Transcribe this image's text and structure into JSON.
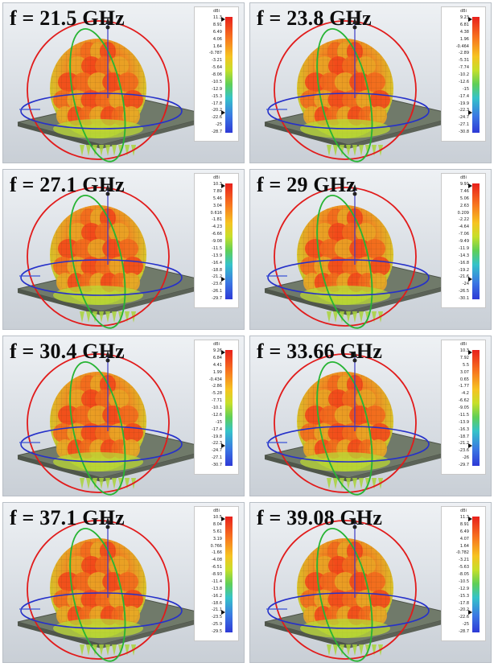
{
  "panels": [
    {
      "freq_label": "f = 21.5 GHz",
      "colorbar_unit": "dBi",
      "ticks": [
        "11.3",
        "8.91",
        "6.49",
        "4.06",
        "1.64",
        "-0.787",
        "-3.21",
        "-5.64",
        "-8.06",
        "-10.5",
        "-12.9",
        "-15.3",
        "-17.8",
        "-20.2",
        "-22.6",
        "-25",
        "-28.7"
      ]
    },
    {
      "freq_label": "f = 23.8 GHz",
      "colorbar_unit": "dBi",
      "ticks": [
        "9.23",
        "6.81",
        "4.38",
        "1.96",
        "-0.464",
        "-2.89",
        "-5.31",
        "-7.74",
        "-10.2",
        "-12.6",
        "-15",
        "-17.4",
        "-19.9",
        "-22.3",
        "-24.7",
        "-27.1",
        "-30.8"
      ]
    },
    {
      "freq_label": "f = 27.1 GHz",
      "colorbar_unit": "dBi",
      "ticks": [
        "10.3",
        "7.89",
        "5.46",
        "3.04",
        "0.616",
        "-1.81",
        "-4.23",
        "-6.66",
        "-9.08",
        "-11.5",
        "-13.9",
        "-16.4",
        "-18.8",
        "-21.2",
        "-23.6",
        "-26.1",
        "-29.7"
      ]
    },
    {
      "freq_label": "f = 29 GHz",
      "colorbar_unit": "dBi",
      "ticks": [
        "9.91",
        "7.46",
        "5.06",
        "2.63",
        "0.209",
        "-2.22",
        "-4.64",
        "-7.06",
        "-9.49",
        "-11.9",
        "-14.3",
        "-16.8",
        "-19.2",
        "-21.6",
        "-24",
        "-26.5",
        "-30.1"
      ]
    },
    {
      "freq_label": "f = 30.4 GHz",
      "colorbar_unit": "dBi",
      "ticks": [
        "9.26",
        "6.84",
        "4.41",
        "1.99",
        "-0.434",
        "-2.86",
        "-5.28",
        "-7.71",
        "-10.1",
        "-12.6",
        "-15",
        "-17.4",
        "-19.8",
        "-22.3",
        "-24.7",
        "-27.1",
        "-30.7"
      ]
    },
    {
      "freq_label": "f = 33.66 GHz",
      "colorbar_unit": "dBi",
      "ticks": [
        "10.3",
        "7.92",
        "5.5",
        "3.07",
        "0.65",
        "-1.77",
        "-4.2",
        "-6.62",
        "-9.05",
        "-11.5",
        "-13.9",
        "-16.3",
        "-18.7",
        "-21.2",
        "-23.6",
        "-26",
        "-29.7"
      ]
    },
    {
      "freq_label": "f = 37.1 GHz",
      "colorbar_unit": "dBi",
      "ticks": [
        "10.5",
        "8.04",
        "5.61",
        "3.19",
        "0.766",
        "-1.66",
        "-4.08",
        "-6.51",
        "-8.93",
        "-11.4",
        "-13.8",
        "-16.2",
        "-18.6",
        "-21.1",
        "-23.5",
        "-25.9",
        "-29.5"
      ]
    },
    {
      "freq_label": "f = 39.08 GHz",
      "colorbar_unit": "dBi",
      "ticks": [
        "11.3",
        "8.91",
        "6.49",
        "4.07",
        "1.64",
        "-0.782",
        "-3.21",
        "-5.63",
        "-8.05",
        "-10.5",
        "-12.9",
        "-15.3",
        "-17.8",
        "-20.2",
        "-22.6",
        "-25",
        "-28.7"
      ]
    }
  ]
}
